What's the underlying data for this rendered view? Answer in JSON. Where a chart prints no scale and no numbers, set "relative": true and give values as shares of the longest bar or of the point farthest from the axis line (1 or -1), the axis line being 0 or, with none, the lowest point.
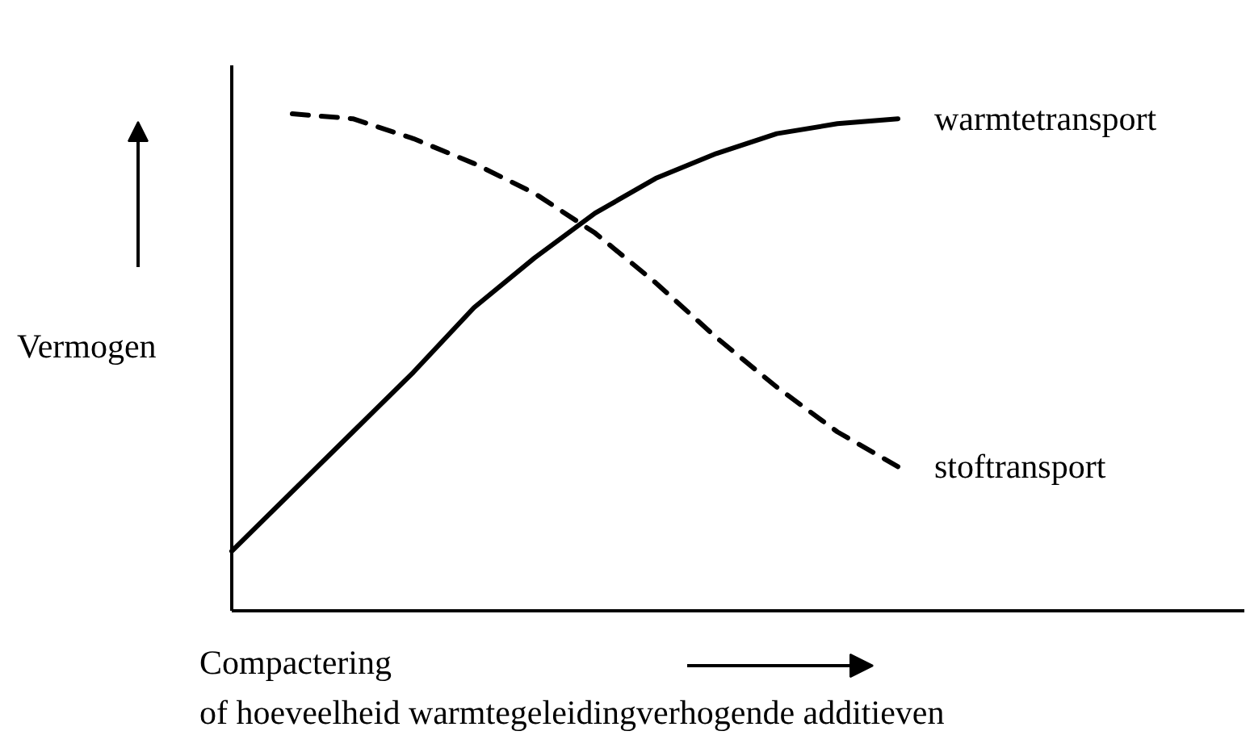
{
  "chart_data": {
    "type": "line",
    "relative": true,
    "xlabel": "Compactering\nof hoeveelheid warmtegeleidingverhogende additieven",
    "ylabel": "Vermogen",
    "categories": [
      null,
      null,
      null,
      null,
      null,
      null,
      null,
      null,
      null,
      null,
      null,
      null
    ],
    "series": [
      {
        "name": "warmtetransport",
        "color": "#000000",
        "line_style": "solid",
        "values": [
          0.12,
          0.24,
          0.36,
          0.48,
          0.61,
          0.71,
          0.8,
          0.87,
          0.92,
          0.96,
          0.98,
          0.99
        ]
      },
      {
        "name": "stoftransport",
        "color": "#000000",
        "line_style": "dashed",
        "values": [
          null,
          1.0,
          0.99,
          0.95,
          0.9,
          0.84,
          0.76,
          0.66,
          0.55,
          0.45,
          0.36,
          0.29
        ]
      }
    ],
    "grid": false
  }
}
